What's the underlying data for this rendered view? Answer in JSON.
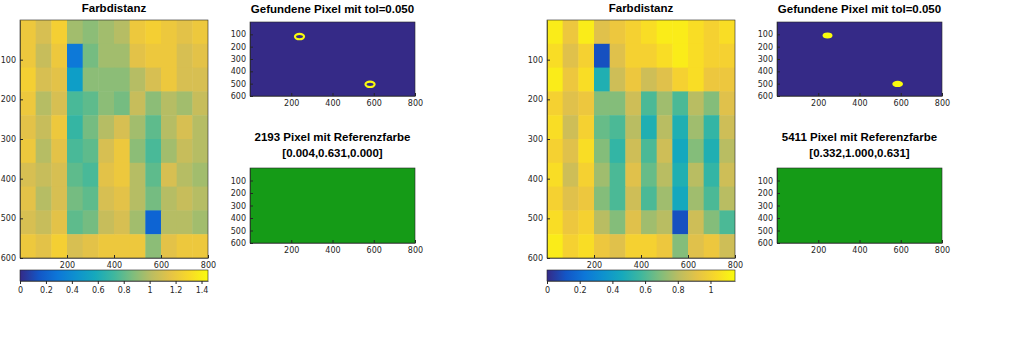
{
  "chart_data": [
    {
      "type": "heatmap",
      "title": "Farbdistanz",
      "xlim": [
        0,
        800
      ],
      "xticks": [
        200,
        400,
        600,
        800
      ],
      "ylim": [
        600,
        0
      ],
      "yticks": [
        100,
        200,
        300,
        400,
        500,
        600
      ],
      "cells": [
        [
          1.2,
          1.1,
          1.25,
          0.95,
          0.9,
          0.95,
          1.0,
          1.2,
          1.25,
          1.2,
          1.15,
          1.2
        ],
        [
          1.2,
          1.05,
          1.2,
          0.3,
          0.85,
          0.95,
          0.95,
          1.15,
          1.2,
          1.2,
          1.1,
          1.15
        ],
        [
          1.25,
          1.1,
          1.15,
          0.5,
          0.9,
          0.9,
          0.9,
          1.0,
          1.1,
          1.2,
          1.1,
          1.1
        ],
        [
          1.2,
          1.0,
          1.1,
          0.75,
          0.8,
          0.9,
          0.85,
          1.05,
          0.9,
          1.0,
          0.95,
          1.05
        ],
        [
          1.15,
          1.05,
          1.2,
          0.7,
          0.85,
          1.0,
          1.1,
          0.95,
          0.8,
          1.0,
          1.1,
          1.0
        ],
        [
          1.2,
          1.0,
          1.15,
          0.75,
          0.8,
          1.1,
          1.2,
          0.9,
          0.75,
          0.95,
          1.05,
          1.0
        ],
        [
          1.1,
          1.05,
          1.1,
          0.8,
          0.75,
          1.15,
          1.2,
          1.0,
          0.8,
          1.1,
          1.0,
          0.95
        ],
        [
          1.15,
          1.0,
          1.1,
          0.85,
          0.8,
          1.1,
          1.15,
          1.0,
          0.85,
          1.0,
          1.05,
          1.0
        ],
        [
          1.1,
          1.05,
          1.15,
          0.8,
          0.85,
          1.05,
          1.1,
          0.95,
          0.2,
          1.0,
          1.0,
          0.95
        ],
        [
          1.2,
          1.15,
          1.25,
          1.1,
          1.15,
          1.2,
          1.2,
          1.2,
          0.9,
          1.15,
          1.2,
          1.2
        ]
      ],
      "colorbar_lim": [
        0,
        1.45
      ],
      "colorbar_ticks": [
        0,
        0.2,
        0.4,
        0.6,
        0.8,
        1,
        1.2,
        1.4
      ]
    },
    {
      "type": "mask",
      "title": "Gefundene Pixel mit tol=0.050",
      "xlim": [
        0,
        800
      ],
      "xticks": [
        200,
        400,
        600,
        800
      ],
      "ylim": [
        600,
        0
      ],
      "yticks": [
        100,
        200,
        300,
        400,
        500,
        600
      ],
      "marker": "ring",
      "blobs": [
        {
          "x": 240,
          "y": 118,
          "r": 22
        },
        {
          "x": 582,
          "y": 505,
          "r": 22
        }
      ]
    },
    {
      "type": "image",
      "title": [
        "2193 Pixel mit Referenzfarbe",
        "[0.004,0.631,0.000]"
      ],
      "xlim": [
        0,
        800
      ],
      "xticks": [
        200,
        400,
        600,
        800
      ],
      "ylim": [
        600,
        0
      ],
      "yticks": [
        100,
        200,
        300,
        400,
        500,
        600
      ],
      "color": "#159b17"
    },
    {
      "type": "heatmap",
      "title": "Farbdistanz",
      "xlim": [
        0,
        800
      ],
      "xticks": [
        200,
        400,
        600,
        800
      ],
      "ylim": [
        600,
        0
      ],
      "yticks": [
        100,
        200,
        300,
        400,
        500,
        600
      ],
      "cells": [
        [
          1.1,
          0.95,
          1.1,
          0.9,
          0.95,
          1.0,
          1.05,
          1.1,
          1.1,
          1.05,
          1.0,
          1.05
        ],
        [
          1.05,
          0.9,
          1.0,
          0.1,
          0.9,
          1.0,
          1.0,
          1.05,
          1.1,
          1.05,
          1.0,
          1.0
        ],
        [
          1.1,
          0.95,
          1.05,
          0.5,
          0.85,
          0.95,
          0.85,
          0.9,
          1.0,
          1.05,
          0.95,
          0.95
        ],
        [
          1.0,
          0.9,
          0.95,
          0.7,
          0.7,
          0.85,
          0.6,
          0.75,
          0.6,
          0.8,
          0.7,
          0.9
        ],
        [
          1.05,
          0.85,
          1.0,
          0.65,
          0.6,
          0.8,
          0.5,
          0.8,
          0.5,
          0.75,
          0.55,
          0.85
        ],
        [
          1.0,
          0.9,
          1.05,
          0.7,
          0.55,
          0.85,
          0.6,
          0.85,
          0.45,
          0.7,
          0.5,
          0.8
        ],
        [
          1.05,
          0.85,
          1.0,
          0.75,
          0.6,
          0.9,
          0.65,
          0.8,
          0.5,
          0.8,
          0.55,
          0.85
        ],
        [
          1.0,
          0.9,
          0.95,
          0.7,
          0.6,
          0.85,
          0.6,
          0.75,
          0.45,
          0.75,
          0.6,
          0.8
        ],
        [
          1.05,
          0.95,
          1.0,
          0.8,
          0.7,
          0.9,
          0.75,
          0.8,
          0.1,
          0.85,
          0.7,
          0.6
        ],
        [
          1.1,
          1.0,
          1.05,
          0.95,
          0.9,
          1.0,
          1.0,
          0.95,
          0.7,
          0.9,
          0.95,
          0.85
        ]
      ],
      "colorbar_lim": [
        0,
        1.15
      ],
      "colorbar_ticks": [
        0,
        0.2,
        0.4,
        0.6,
        0.8,
        1
      ]
    },
    {
      "type": "mask",
      "title": "Gefundene Pixel mit tol=0.050",
      "xlim": [
        0,
        800
      ],
      "xticks": [
        200,
        400,
        600,
        800
      ],
      "ylim": [
        600,
        0
      ],
      "yticks": [
        100,
        200,
        300,
        400,
        500,
        600
      ],
      "marker": "circle",
      "blobs": [
        {
          "x": 245,
          "y": 110,
          "r": 24
        },
        {
          "x": 585,
          "y": 502,
          "r": 26
        }
      ]
    },
    {
      "type": "image",
      "title": [
        "5411 Pixel mit Referenzfarbe",
        "[0.332,1.000,0.631]"
      ],
      "xlim": [
        0,
        800
      ],
      "xticks": [
        200,
        400,
        600,
        800
      ],
      "ylim": [
        600,
        0
      ],
      "yticks": [
        100,
        200,
        300,
        400,
        500,
        600
      ],
      "color": "#159b17"
    }
  ]
}
